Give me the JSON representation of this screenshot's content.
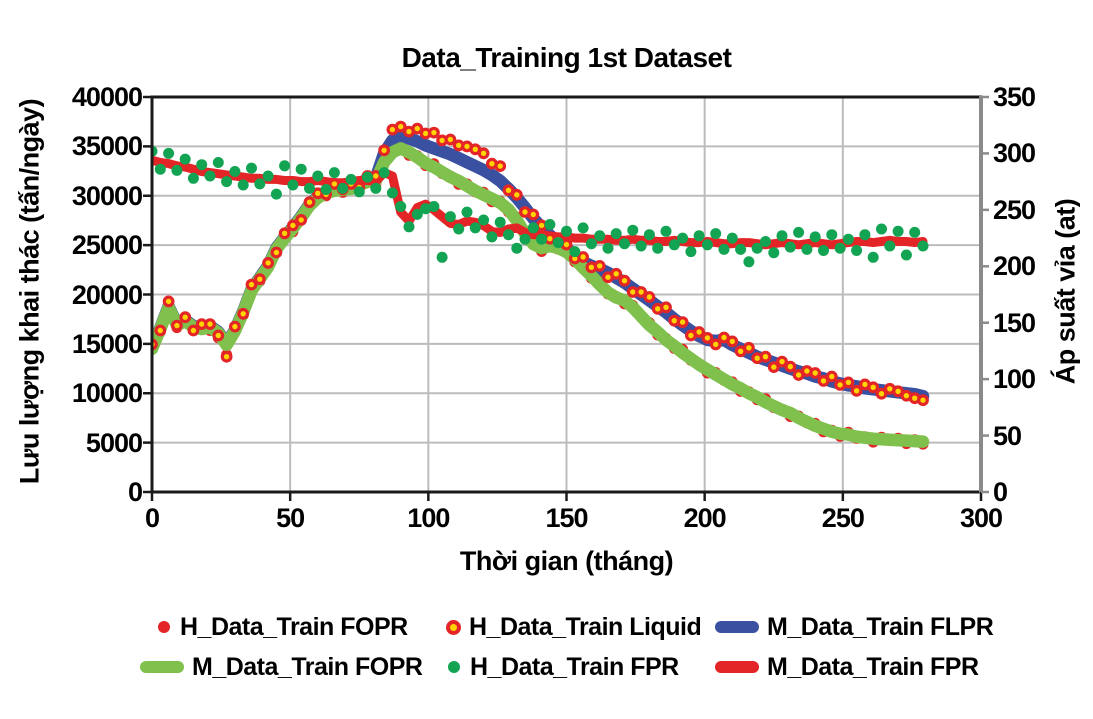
{
  "title": "Data_Training 1st Dataset",
  "axes": {
    "x_label": "Thời gian (tháng)",
    "y_left_label": "Lưu lượng khai thác (tấn/ngày)",
    "y_right_label": "Áp suất vỉa (at)"
  },
  "colors": {
    "red": "#e42528",
    "blue": "#3a50a0",
    "light_green": "#7fc14c",
    "dark_green": "#12a452",
    "yellow": "#ffd400",
    "grid": "#bcbcbc",
    "frame": "#1a1a1a",
    "right_spine": "#8a8a8a"
  },
  "chart_data": {
    "type": "line",
    "title": "Data_Training 1st Dataset",
    "xlabel": "Thời gian (tháng)",
    "ylabel_left": "Lưu lượng khai thác (tấn/ngày)",
    "ylabel_right": "Áp suất vỉa (at)",
    "xlim": [
      0,
      300
    ],
    "ylim_left": [
      0,
      40000
    ],
    "ylim_right": [
      0,
      350
    ],
    "x_ticks": [
      0,
      50,
      100,
      150,
      200,
      250,
      300
    ],
    "y_left_ticks": [
      0,
      5000,
      10000,
      15000,
      20000,
      25000,
      30000,
      35000,
      40000
    ],
    "y_right_ticks": [
      0,
      50,
      100,
      150,
      200,
      250,
      300,
      350
    ],
    "grid": true,
    "legend_position": "bottom",
    "x": [
      0,
      3,
      6,
      9,
      12,
      15,
      18,
      21,
      24,
      27,
      30,
      33,
      36,
      39,
      42,
      45,
      48,
      51,
      54,
      57,
      60,
      63,
      66,
      69,
      72,
      75,
      78,
      81,
      84,
      87,
      90,
      93,
      96,
      99,
      102,
      105,
      108,
      111,
      114,
      117,
      120,
      123,
      126,
      129,
      132,
      135,
      138,
      141,
      144,
      147,
      150,
      153,
      156,
      159,
      162,
      165,
      168,
      171,
      174,
      177,
      180,
      183,
      186,
      189,
      192,
      195,
      198,
      201,
      204,
      207,
      210,
      213,
      216,
      219,
      222,
      225,
      228,
      231,
      234,
      237,
      240,
      243,
      246,
      249,
      252,
      255,
      258,
      261,
      264,
      267,
      270,
      273,
      276,
      279
    ],
    "series": [
      {
        "name": "H_Data_Train FOPR",
        "axis": "left",
        "style": "dot",
        "color": "#e42528",
        "r": 5.5,
        "values": [
          14750,
          16200,
          18850,
          16650,
          17650,
          16550,
          16600,
          16350,
          15600,
          13900,
          16550,
          17900,
          20550,
          21350,
          23150,
          24450,
          25800,
          26350,
          28000,
          28900,
          30050,
          30000,
          30650,
          30350,
          31050,
          30950,
          31500,
          31150,
          33600,
          34300,
          35050,
          34100,
          34050,
          33050,
          33250,
          32250,
          32000,
          31150,
          31200,
          30400,
          30350,
          29400,
          29450,
          28350,
          27850,
          26050,
          25200,
          24350,
          25100,
          24600,
          24550,
          23300,
          22850,
          21650,
          21350,
          20050,
          19800,
          19050,
          18900,
          17700,
          17150,
          15900,
          15550,
          14550,
          14450,
          13350,
          13000,
          12050,
          12100,
          11300,
          11150,
          10200,
          10150,
          9350,
          9450,
          8550,
          8400,
          7650,
          7700,
          7000,
          6950,
          6100,
          6250,
          5650,
          6050,
          5450,
          5600,
          5050,
          5550,
          5200,
          5450,
          4900,
          5300,
          4850
        ]
      },
      {
        "name": "M_Data_Train FLPR",
        "axis": "left",
        "style": "line",
        "color": "#3a50a0",
        "lw": 12.5,
        "values": [
          14600,
          16600,
          18800,
          17000,
          17400,
          16800,
          16600,
          16800,
          16200,
          15000,
          16400,
          18300,
          20500,
          21700,
          22900,
          24700,
          25800,
          26800,
          27900,
          29100,
          29900,
          30400,
          30700,
          30800,
          30900,
          31300,
          31600,
          31800,
          34300,
          35600,
          35900,
          35800,
          35500,
          35100,
          34800,
          34500,
          34200,
          33800,
          33400,
          33000,
          32600,
          32100,
          31500,
          30700,
          29800,
          28800,
          27700,
          26800,
          26000,
          25300,
          24700,
          23900,
          23300,
          22900,
          22600,
          22200,
          21700,
          21200,
          20600,
          20000,
          19400,
          18800,
          18200,
          17500,
          16900,
          16300,
          15800,
          15400,
          15300,
          15400,
          14900,
          14500,
          14100,
          13700,
          13400,
          13100,
          12800,
          12500,
          12200,
          12000,
          11700,
          11500,
          11200,
          11000,
          10800,
          10700,
          10500,
          10400,
          10300,
          10200,
          10100,
          10000,
          9900,
          9700
        ]
      },
      {
        "name": "M_Data_Train FOPR",
        "axis": "left",
        "style": "line",
        "color": "#7fc14c",
        "lw": 12.5,
        "values": [
          14500,
          16500,
          18700,
          16900,
          17300,
          16700,
          16500,
          16700,
          16100,
          14900,
          16300,
          18200,
          20400,
          21600,
          22800,
          24600,
          25700,
          26700,
          27800,
          29000,
          29800,
          30300,
          30500,
          30600,
          30700,
          31100,
          31400,
          31500,
          33400,
          34400,
          34800,
          34400,
          33900,
          33300,
          32900,
          32400,
          31900,
          31500,
          31000,
          30500,
          30100,
          29700,
          29300,
          28600,
          27500,
          26200,
          25100,
          24700,
          24900,
          24700,
          24300,
          23600,
          22700,
          21900,
          21000,
          20200,
          19700,
          19400,
          18700,
          17800,
          16900,
          16200,
          15400,
          14800,
          14100,
          13500,
          12900,
          12400,
          11900,
          11400,
          10900,
          10500,
          10000,
          9600,
          9100,
          8700,
          8300,
          8000,
          7500,
          7100,
          6700,
          6400,
          6100,
          5900,
          5800,
          5600,
          5500,
          5400,
          5350,
          5300,
          5250,
          5200,
          5150,
          5100
        ]
      },
      {
        "name": "M_Data_Train FPR",
        "axis": "right",
        "style": "line",
        "color": "#e42528",
        "lw": 9,
        "values": [
          294,
          292,
          291,
          289,
          288,
          286,
          284,
          283,
          282,
          281,
          280,
          279,
          278,
          278,
          277,
          277,
          276,
          276,
          275,
          275,
          276,
          275,
          274,
          274,
          275,
          276,
          276,
          275,
          283,
          280,
          248,
          240,
          252,
          255,
          250,
          244,
          238,
          237,
          240,
          239,
          236,
          231,
          230,
          233,
          234,
          230,
          228,
          228,
          227,
          226,
          226,
          225,
          225,
          224,
          224,
          224,
          223,
          223,
          224,
          223,
          223,
          222,
          222,
          223,
          222,
          221,
          221,
          222,
          221,
          220,
          220,
          221,
          221,
          220,
          219,
          220,
          221,
          220,
          219,
          220,
          221,
          220,
          219,
          220,
          221,
          222,
          222,
          221,
          222,
          223,
          222,
          222,
          221,
          222
        ]
      },
      {
        "name": "H_Data_Train Liquid",
        "axis": "left",
        "style": "ring",
        "color": "#e42528",
        "fill": "#ffd400",
        "r": 4.3,
        "sw": 3.2,
        "values": [
          14950,
          16350,
          19300,
          16850,
          17700,
          16350,
          17000,
          17000,
          15850,
          13700,
          16750,
          18050,
          21000,
          21550,
          23200,
          24250,
          26200,
          27000,
          27550,
          29350,
          30250,
          30150,
          31200,
          30650,
          31200,
          30850,
          32000,
          32000,
          34600,
          36700,
          37000,
          36500,
          36800,
          36300,
          36400,
          35600,
          35700,
          35100,
          35000,
          34700,
          34300,
          33250,
          33000,
          30550,
          30100,
          28350,
          28100,
          27000,
          25650,
          25550,
          25050,
          23650,
          23800,
          22750,
          22900,
          21750,
          22100,
          21400,
          20250,
          20250,
          19750,
          18550,
          18700,
          17350,
          17200,
          15850,
          16200,
          15600,
          14950,
          15650,
          15250,
          14250,
          14600,
          13550,
          13700,
          12650,
          13200,
          12700,
          11850,
          12250,
          12050,
          11250,
          11700,
          10850,
          11100,
          10250,
          10900,
          10600,
          9950,
          10450,
          10200,
          9750,
          9500,
          9300
        ]
      },
      {
        "name": "H_Data_Train FPR",
        "axis": "right",
        "style": "dot",
        "color": "#12a452",
        "r": 5.5,
        "values": [
          302,
          286,
          300,
          285,
          295,
          278,
          290,
          280,
          292,
          275,
          284,
          272,
          287,
          273,
          280,
          264,
          289,
          272,
          286,
          269,
          280,
          268,
          283,
          269,
          277,
          266,
          279,
          269,
          283,
          265,
          253,
          235,
          246,
          251,
          253,
          208,
          244,
          233,
          248,
          234,
          241,
          226,
          239,
          228,
          216,
          224,
          234,
          224,
          237,
          221,
          231,
          213,
          234,
          220,
          227,
          216,
          229,
          220,
          232,
          218,
          228,
          216,
          231,
          219,
          225,
          213,
          227,
          219,
          229,
          215,
          225,
          215,
          204,
          216,
          222,
          212,
          227,
          217,
          230,
          215,
          226,
          214,
          228,
          216,
          224,
          214,
          228,
          208,
          233,
          218,
          231,
          210,
          230,
          218
        ]
      }
    ]
  },
  "legend": {
    "items": [
      {
        "label": "H_Data_Train FOPR",
        "marker": "dot",
        "color": "#e42528"
      },
      {
        "label": "H_Data_Train Liquid",
        "marker": "ring",
        "color": "#e42528",
        "fill": "#ffd400"
      },
      {
        "label": "M_Data_Train FLPR",
        "marker": "bar",
        "color": "#3a50a0"
      },
      {
        "label": "M_Data_Train FOPR",
        "marker": "bar",
        "color": "#7fc14c"
      },
      {
        "label": "H_Data_Train FPR",
        "marker": "dot",
        "color": "#12a452"
      },
      {
        "label": "M_Data_Train FPR",
        "marker": "bar",
        "color": "#e42528"
      }
    ]
  }
}
